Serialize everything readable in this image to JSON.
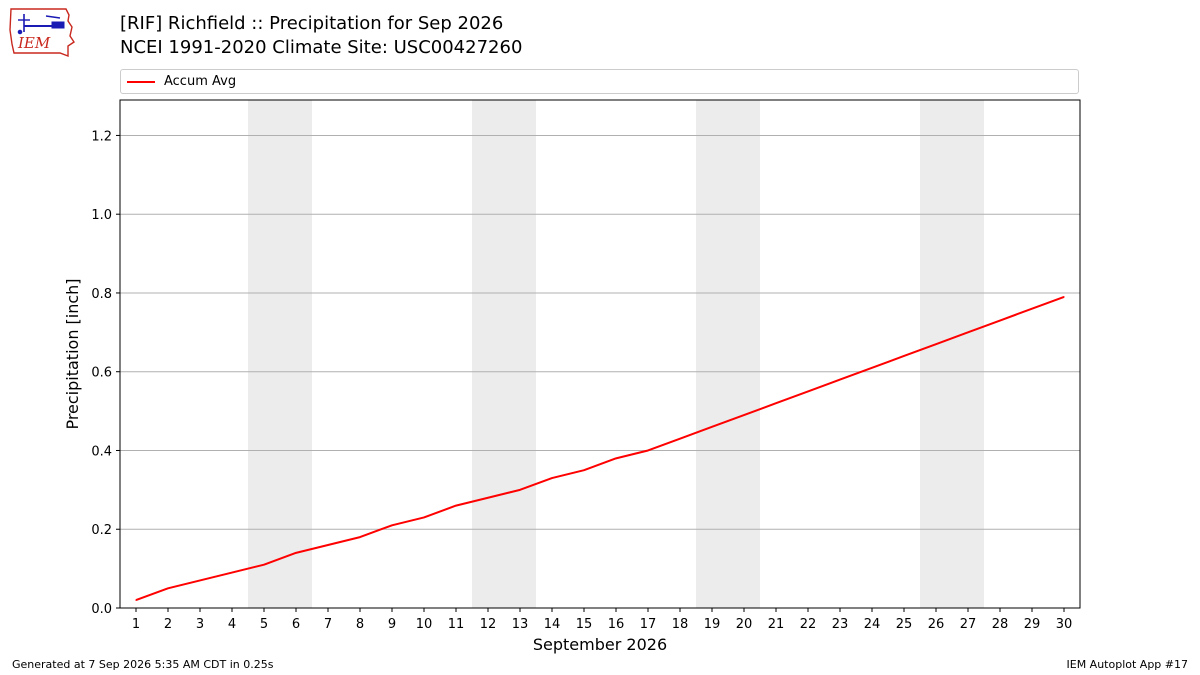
{
  "header": {
    "title_line1": "[RIF] Richfield :: Precipitation for Sep 2026",
    "title_line2": "NCEI 1991-2020 Climate Site: USC00427260"
  },
  "logo": {
    "text": "IEM",
    "icon": "iem-iowa-logo"
  },
  "footer": {
    "generated": "Generated at 7 Sep 2026 5:35 AM CDT in 0.25s",
    "app": "IEM Autoplot App #17"
  },
  "chart_data": {
    "type": "line",
    "title": "[RIF] Richfield :: Precipitation for Sep 2026",
    "subtitle": "NCEI 1991-2020 Climate Site: USC00427260",
    "xlabel": "September 2026",
    "ylabel": "Precipitation [inch]",
    "x": [
      1,
      2,
      3,
      4,
      5,
      6,
      7,
      8,
      9,
      10,
      11,
      12,
      13,
      14,
      15,
      16,
      17,
      18,
      19,
      20,
      21,
      22,
      23,
      24,
      25,
      26,
      27,
      28,
      29,
      30
    ],
    "xlim": [
      0.5,
      30.5
    ],
    "ylim": [
      0,
      1.29
    ],
    "yticks": [
      0.0,
      0.2,
      0.4,
      0.6,
      0.8,
      1.0,
      1.2
    ],
    "ytick_labels": [
      "0.0",
      "0.2",
      "0.4",
      "0.6",
      "0.8",
      "1.0",
      "1.2"
    ],
    "grid": "horizontal",
    "weekend_shading": [
      [
        5,
        6
      ],
      [
        12,
        13
      ],
      [
        19,
        20
      ],
      [
        26,
        27
      ]
    ],
    "legend_position": "top",
    "series": [
      {
        "name": "Accum Avg",
        "color": "#ff0000",
        "values": [
          0.02,
          0.05,
          0.07,
          0.09,
          0.11,
          0.14,
          0.16,
          0.18,
          0.21,
          0.23,
          0.26,
          0.28,
          0.3,
          0.33,
          0.35,
          0.38,
          0.4,
          0.43,
          0.46,
          0.49,
          0.52,
          0.55,
          0.58,
          0.61,
          0.64,
          0.67,
          0.7,
          0.73,
          0.76,
          0.79
        ]
      }
    ]
  }
}
